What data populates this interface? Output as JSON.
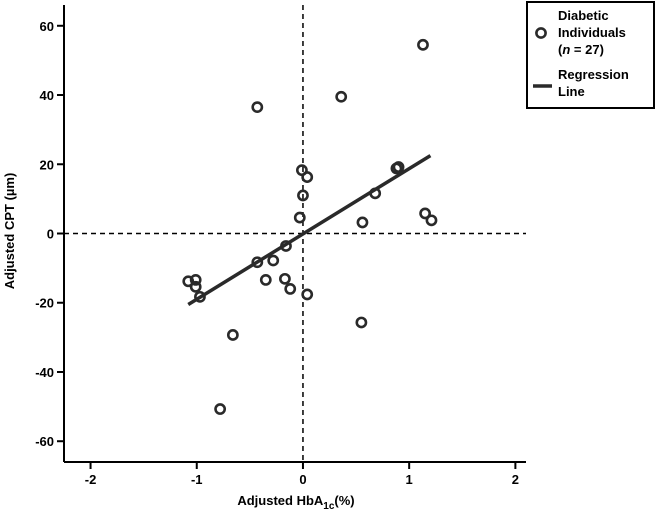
{
  "chart_data": {
    "type": "scatter",
    "title": "",
    "xlabel": {
      "prefix": "Adjusted HbA",
      "subscript": "1c",
      "suffix": "(%)"
    },
    "ylabel": "Adjusted CPT (µm)",
    "xlim": [
      -2.25,
      2.1
    ],
    "ylim": [
      -66,
      66
    ],
    "x_ticks": [
      -2,
      -1,
      0,
      1,
      2
    ],
    "y_ticks": [
      60,
      40,
      20,
      0,
      -20,
      -40,
      -60
    ],
    "reference_lines": {
      "x": 0,
      "y": 0,
      "style": "dashed"
    },
    "series": [
      {
        "name": "Diabetic Individuals (n = 27)",
        "marker": "open-circle",
        "points": [
          {
            "x": 1.13,
            "y": 54.5
          },
          {
            "x": 0.36,
            "y": 39.5
          },
          {
            "x": -0.43,
            "y": 36.5
          },
          {
            "x": -0.01,
            "y": 18.3
          },
          {
            "x": 0.04,
            "y": 16.3
          },
          {
            "x": 0.88,
            "y": 18.8
          },
          {
            "x": 0.9,
            "y": 19.2
          },
          {
            "x": 0.68,
            "y": 11.6
          },
          {
            "x": 0.0,
            "y": 11.0
          },
          {
            "x": -0.03,
            "y": 4.6
          },
          {
            "x": 0.56,
            "y": 3.2
          },
          {
            "x": 1.15,
            "y": 5.8
          },
          {
            "x": 1.21,
            "y": 3.8
          },
          {
            "x": -0.16,
            "y": -3.6
          },
          {
            "x": -0.28,
            "y": -7.8
          },
          {
            "x": -0.43,
            "y": -8.3
          },
          {
            "x": -0.35,
            "y": -13.4
          },
          {
            "x": -0.17,
            "y": -13.1
          },
          {
            "x": -0.12,
            "y": -16.0
          },
          {
            "x": 0.04,
            "y": -17.6
          },
          {
            "x": -1.08,
            "y": -13.8
          },
          {
            "x": -1.01,
            "y": -13.4
          },
          {
            "x": -1.01,
            "y": -15.4
          },
          {
            "x": -0.97,
            "y": -18.3
          },
          {
            "x": -0.66,
            "y": -29.3
          },
          {
            "x": 0.55,
            "y": -25.7
          },
          {
            "x": -0.78,
            "y": -50.7
          }
        ]
      },
      {
        "name": "Regression Line",
        "type": "line",
        "points": [
          {
            "x": -1.08,
            "y": -20.5
          },
          {
            "x": 1.2,
            "y": 22.5
          }
        ]
      }
    ],
    "legend": {
      "position": "top-right",
      "entries": [
        {
          "lines": [
            "Diabetic",
            "Individuals"
          ],
          "n_label": "n",
          "n_value": " = 27)",
          "open_paren": "("
        },
        {
          "lines": [
            "Regression",
            "Line"
          ]
        }
      ]
    },
    "grid": false
  },
  "colors": {
    "ink": "#000000",
    "marker": "#2a2a2a",
    "background": "#ffffff"
  }
}
